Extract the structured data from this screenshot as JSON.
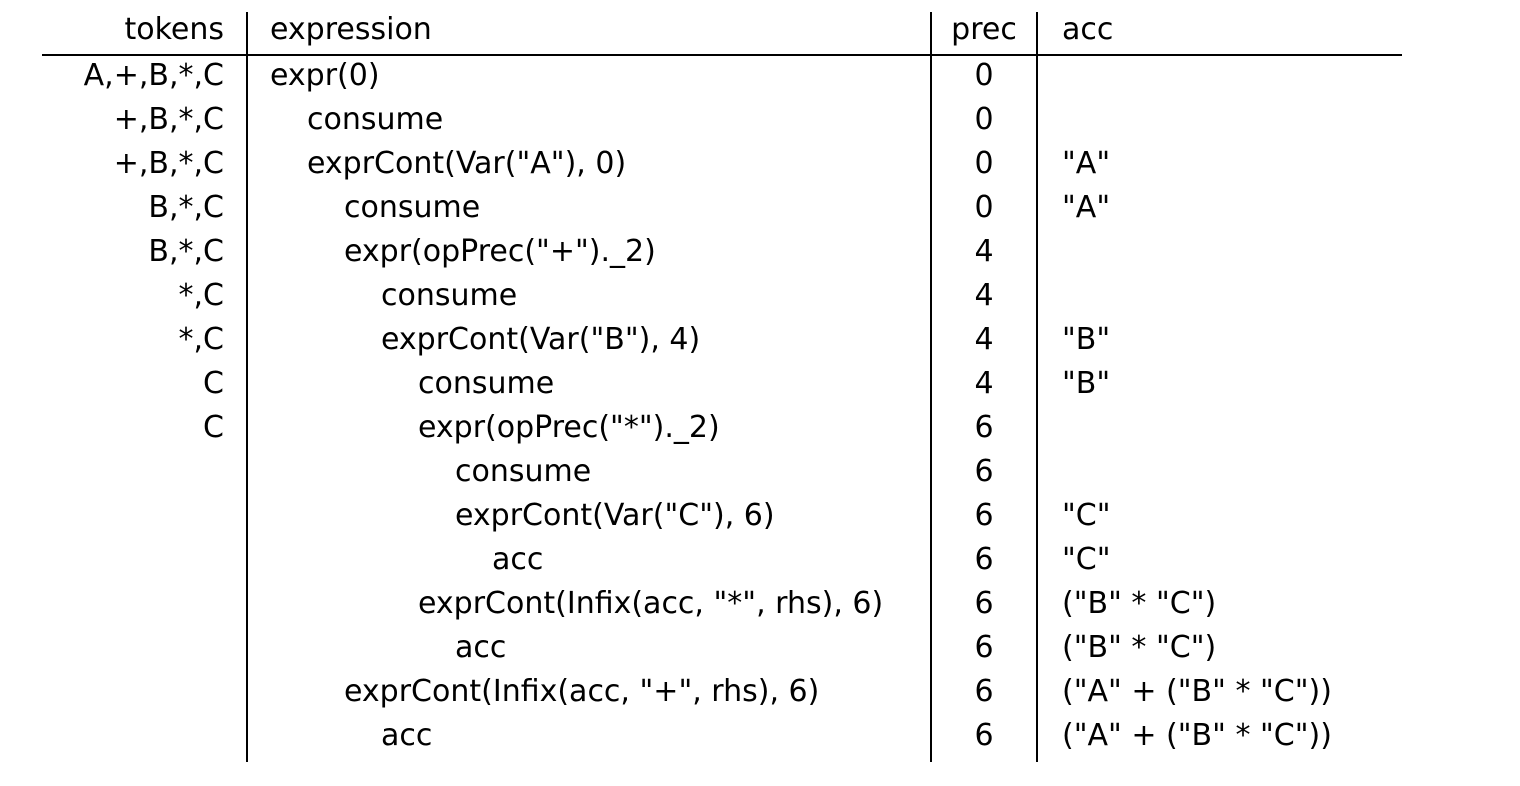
{
  "headers": {
    "tokens": "tokens",
    "expression": "expression",
    "prec": "prec",
    "acc": "acc"
  },
  "rows": [
    {
      "tokens": "A,+,B,*,C",
      "depth": 0,
      "expression": "expr(0)",
      "prec": "0",
      "acc": ""
    },
    {
      "tokens": "+,B,*,C",
      "depth": 1,
      "expression": "consume",
      "prec": "0",
      "acc": ""
    },
    {
      "tokens": "+,B,*,C",
      "depth": 1,
      "expression": "exprCont(Var(\"A\"), 0)",
      "prec": "0",
      "acc": "\"A\""
    },
    {
      "tokens": "B,*,C",
      "depth": 2,
      "expression": "consume",
      "prec": "0",
      "acc": "\"A\""
    },
    {
      "tokens": "B,*,C",
      "depth": 2,
      "expression": "expr(opPrec(\"+\")._2)",
      "prec": "4",
      "acc": ""
    },
    {
      "tokens": "*,C",
      "depth": 3,
      "expression": "consume",
      "prec": "4",
      "acc": ""
    },
    {
      "tokens": "*,C",
      "depth": 3,
      "expression": "exprCont(Var(\"B\"), 4)",
      "prec": "4",
      "acc": "\"B\""
    },
    {
      "tokens": "C",
      "depth": 4,
      "expression": "consume",
      "prec": "4",
      "acc": "\"B\""
    },
    {
      "tokens": "C",
      "depth": 4,
      "expression": "expr(opPrec(\"*\")._2)",
      "prec": "6",
      "acc": ""
    },
    {
      "tokens": "",
      "depth": 5,
      "expression": "consume",
      "prec": "6",
      "acc": ""
    },
    {
      "tokens": "",
      "depth": 5,
      "expression": "exprCont(Var(\"C\"), 6)",
      "prec": "6",
      "acc": "\"C\""
    },
    {
      "tokens": "",
      "depth": 6,
      "expression": "acc",
      "prec": "6",
      "acc": "\"C\""
    },
    {
      "tokens": "",
      "depth": 4,
      "expression": "exprCont(Infix(acc, \"*\", rhs), 6)",
      "prec": "6",
      "acc": "(\"B\" * \"C\")"
    },
    {
      "tokens": "",
      "depth": 5,
      "expression": "acc",
      "prec": "6",
      "acc": "(\"B\" * \"C\")"
    },
    {
      "tokens": "",
      "depth": 2,
      "expression": "exprCont(Infix(acc, \"+\", rhs), 6)",
      "prec": "6",
      "acc": "(\"A\" + (\"B\" * \"C\"))"
    },
    {
      "tokens": "",
      "depth": 3,
      "expression": "acc",
      "prec": "6",
      "acc": "(\"A\" + (\"B\" * \"C\"))"
    }
  ]
}
